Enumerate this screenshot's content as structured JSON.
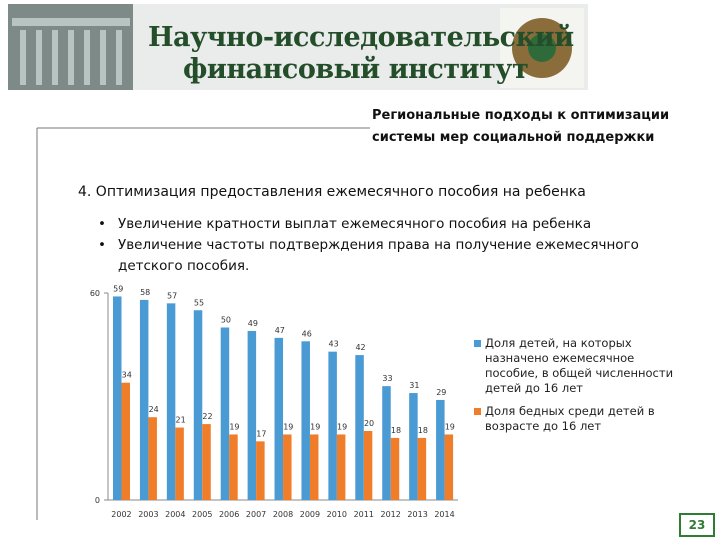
{
  "header": {
    "title_line1": "Научно-исследовательский",
    "title_line2": "финансовый институт"
  },
  "slide_title": {
    "line1": "Региональные подходы к оптимизации",
    "line2": "системы мер социальной поддержки"
  },
  "section_heading": "4. Оптимизация предоставления ежемесячного пособия на ребенка",
  "bullets": [
    "Увеличение кратности выплат ежемесячного пособия на ребенка",
    "Увеличение частоты подтверждения права на получение ежемесячного детского пособия."
  ],
  "page_number": "23",
  "chart_data": {
    "type": "bar",
    "categories": [
      "2002",
      "2003",
      "2004",
      "2005",
      "2006",
      "2007",
      "2008",
      "2009",
      "2010",
      "2011",
      "2012",
      "2013",
      "2014"
    ],
    "series": [
      {
        "name": "Доля детей, на которых назначено ежемесячное пособие, в общей численности детей до 16 лет",
        "color": "#4a9ad4",
        "values": [
          59,
          58,
          57,
          55,
          50,
          49,
          47,
          46,
          43,
          42,
          33,
          31,
          29
        ]
      },
      {
        "name": "Доля бедных среди детей в возрасте до 16 лет",
        "color": "#f07d2a",
        "values": [
          34,
          24,
          21,
          22,
          19,
          17,
          19,
          19,
          19,
          20,
          18,
          18,
          19
        ]
      }
    ],
    "ylim": [
      0,
      60
    ],
    "yticks": [
      0,
      60
    ],
    "grid": false,
    "data_labels": true,
    "legend": "right"
  }
}
